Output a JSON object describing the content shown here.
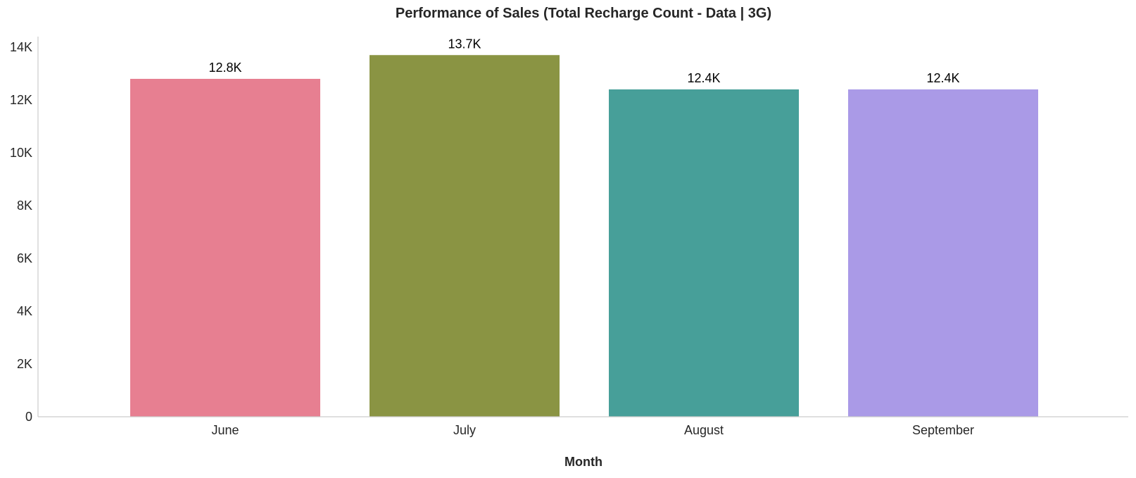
{
  "chart_data": {
    "type": "bar",
    "title": "Performance of Sales (Total Recharge Count - Data | 3G)",
    "xlabel": "Month",
    "ylabel": "",
    "categories": [
      "June",
      "July",
      "August",
      "September"
    ],
    "values": [
      12800,
      13700,
      12400,
      12400
    ],
    "value_labels": [
      "12.8K",
      "13.7K",
      "12.4K",
      "12.4K"
    ],
    "colors": [
      "#e77f91",
      "#8a9443",
      "#479f99",
      "#aa9ae7"
    ],
    "ylim": [
      0,
      14400
    ],
    "yticks": [
      0,
      2000,
      4000,
      6000,
      8000,
      10000,
      12000,
      14000
    ],
    "ytick_labels": [
      "0",
      "2K",
      "4K",
      "6K",
      "8K",
      "10K",
      "12K",
      "14K"
    ],
    "grid": false,
    "legend": "none"
  }
}
